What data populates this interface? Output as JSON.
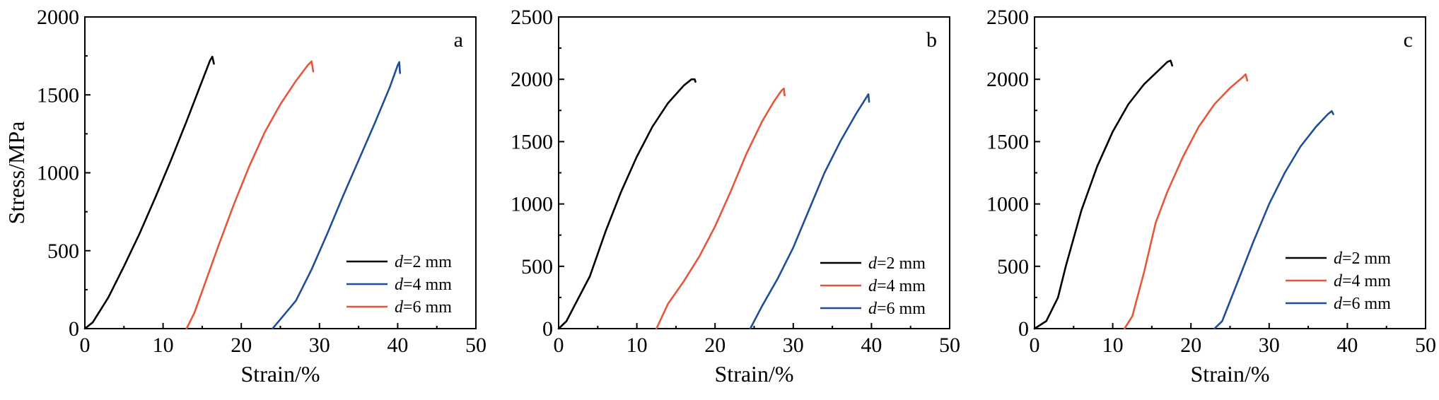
{
  "chart_data": [
    {
      "type": "line",
      "panel_label": "a",
      "xlabel": "Strain/%",
      "ylabel": "Stress/MPa",
      "xlim": [
        0,
        50
      ],
      "ylim": [
        0,
        2000
      ],
      "xticks": [
        0,
        10,
        20,
        30,
        40,
        50
      ],
      "yticks": [
        0,
        500,
        1000,
        1500,
        2000
      ],
      "legend_position": "bottom-right",
      "legend": [
        {
          "prefix": "d",
          "text": "=2 mm",
          "color": "#000000"
        },
        {
          "prefix": "d",
          "text": "=4 mm",
          "color": "#1f4e99"
        },
        {
          "prefix": "d",
          "text": "=6 mm",
          "color": "#e5573a"
        }
      ],
      "series": [
        {
          "color": "#000000",
          "points": [
            [
              0,
              0
            ],
            [
              1,
              40
            ],
            [
              3,
              200
            ],
            [
              5,
              400
            ],
            [
              7,
              610
            ],
            [
              9,
              840
            ],
            [
              11,
              1080
            ],
            [
              13,
              1330
            ],
            [
              15,
              1590
            ],
            [
              16,
              1720
            ],
            [
              16.3,
              1745
            ],
            [
              16.5,
              1700
            ]
          ]
        },
        {
          "color": "#e5573a",
          "points": [
            [
              13,
              0
            ],
            [
              14,
              100
            ],
            [
              15,
              240
            ],
            [
              17,
              520
            ],
            [
              19,
              790
            ],
            [
              21,
              1040
            ],
            [
              23,
              1260
            ],
            [
              25,
              1440
            ],
            [
              27,
              1590
            ],
            [
              28.5,
              1690
            ],
            [
              29,
              1715
            ],
            [
              29.2,
              1650
            ]
          ]
        },
        {
          "color": "#1f4e99",
          "points": [
            [
              24,
              0
            ],
            [
              25,
              60
            ],
            [
              27,
              180
            ],
            [
              29,
              380
            ],
            [
              31,
              610
            ],
            [
              33,
              850
            ],
            [
              35,
              1080
            ],
            [
              37,
              1310
            ],
            [
              39,
              1550
            ],
            [
              40,
              1690
            ],
            [
              40.2,
              1710
            ],
            [
              40.3,
              1640
            ]
          ]
        }
      ]
    },
    {
      "type": "line",
      "panel_label": "b",
      "xlabel": "Strain/%",
      "ylabel": "",
      "xlim": [
        0,
        50
      ],
      "ylim": [
        0,
        2500
      ],
      "xticks": [
        0,
        10,
        20,
        30,
        40,
        50
      ],
      "yticks": [
        0,
        500,
        1000,
        1500,
        2000,
        2500
      ],
      "legend_position": "bottom-right",
      "legend": [
        {
          "prefix": "d",
          "text": "=2 mm",
          "color": "#000000"
        },
        {
          "prefix": "d",
          "text": "=4 mm",
          "color": "#e5573a"
        },
        {
          "prefix": "d",
          "text": "=6 mm",
          "color": "#1f4e99"
        }
      ],
      "series": [
        {
          "color": "#000000",
          "points": [
            [
              0,
              0
            ],
            [
              1,
              60
            ],
            [
              2,
              180
            ],
            [
              4,
              420
            ],
            [
              6,
              780
            ],
            [
              8,
              1100
            ],
            [
              10,
              1380
            ],
            [
              12,
              1620
            ],
            [
              14,
              1810
            ],
            [
              16,
              1950
            ],
            [
              17,
              2000
            ],
            [
              17.4,
              2000
            ],
            [
              17.5,
              1980
            ]
          ]
        },
        {
          "color": "#e5573a",
          "points": [
            [
              12.5,
              0
            ],
            [
              14,
              200
            ],
            [
              16,
              380
            ],
            [
              18,
              580
            ],
            [
              20,
              820
            ],
            [
              22,
              1100
            ],
            [
              24,
              1400
            ],
            [
              26,
              1660
            ],
            [
              27.5,
              1820
            ],
            [
              28.5,
              1910
            ],
            [
              28.8,
              1925
            ],
            [
              28.9,
              1870
            ]
          ]
        },
        {
          "color": "#1f4e99",
          "points": [
            [
              24.5,
              0
            ],
            [
              26,
              180
            ],
            [
              28,
              400
            ],
            [
              30,
              650
            ],
            [
              32,
              950
            ],
            [
              34,
              1250
            ],
            [
              36,
              1500
            ],
            [
              38,
              1720
            ],
            [
              39.3,
              1850
            ],
            [
              39.6,
              1880
            ],
            [
              39.7,
              1820
            ]
          ]
        }
      ]
    },
    {
      "type": "line",
      "panel_label": "c",
      "xlabel": "Strain/%",
      "ylabel": "",
      "xlim": [
        0,
        50
      ],
      "ylim": [
        0,
        2500
      ],
      "xticks": [
        0,
        10,
        20,
        30,
        40,
        50
      ],
      "yticks": [
        0,
        500,
        1000,
        1500,
        2000,
        2500
      ],
      "legend_position": "bottom-right",
      "legend": [
        {
          "prefix": "d",
          "text": "=2 mm",
          "color": "#000000"
        },
        {
          "prefix": "d",
          "text": "=4 mm",
          "color": "#e5573a"
        },
        {
          "prefix": "d",
          "text": "=6 mm",
          "color": "#1f4e99"
        }
      ],
      "series": [
        {
          "color": "#000000",
          "points": [
            [
              0,
              0
            ],
            [
              1.5,
              60
            ],
            [
              3,
              250
            ],
            [
              4,
              500
            ],
            [
              6,
              950
            ],
            [
              8,
              1300
            ],
            [
              10,
              1580
            ],
            [
              12,
              1800
            ],
            [
              14,
              1960
            ],
            [
              16,
              2080
            ],
            [
              17,
              2140
            ],
            [
              17.4,
              2150
            ],
            [
              17.6,
              2110
            ]
          ]
        },
        {
          "color": "#e5573a",
          "points": [
            [
              11.5,
              0
            ],
            [
              12.5,
              100
            ],
            [
              14,
              450
            ],
            [
              15.5,
              850
            ],
            [
              17,
              1100
            ],
            [
              19,
              1380
            ],
            [
              21,
              1620
            ],
            [
              23,
              1800
            ],
            [
              25,
              1930
            ],
            [
              26.5,
              2010
            ],
            [
              27,
              2040
            ],
            [
              27.2,
              1990
            ]
          ]
        },
        {
          "color": "#1f4e99",
          "points": [
            [
              23,
              0
            ],
            [
              24,
              60
            ],
            [
              26,
              380
            ],
            [
              28,
              700
            ],
            [
              30,
              1000
            ],
            [
              32,
              1250
            ],
            [
              34,
              1460
            ],
            [
              36,
              1620
            ],
            [
              37.5,
              1720
            ],
            [
              38,
              1745
            ],
            [
              38.2,
              1720
            ]
          ]
        }
      ]
    }
  ]
}
